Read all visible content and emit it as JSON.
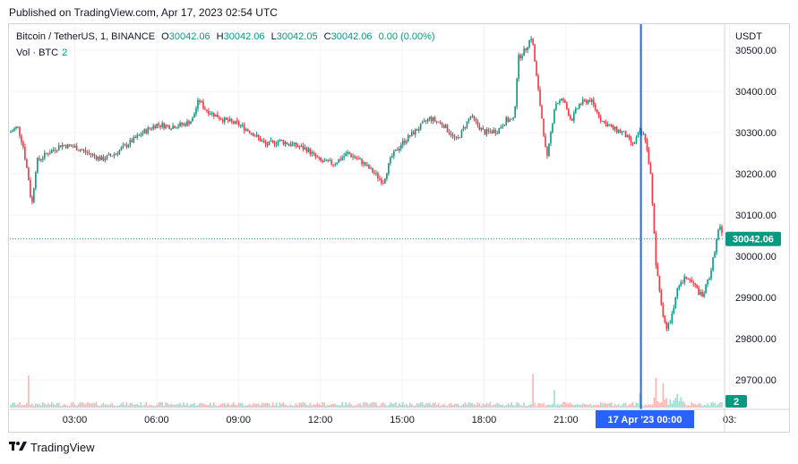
{
  "header": {
    "published": "Published on TradingView.com, Apr 17, 2023 02:54 UTC"
  },
  "legend": {
    "symbol": "Bitcoin / TetherUS, 1, BINANCE",
    "o_label": "O",
    "o_value": "30042.06",
    "h_label": "H",
    "h_value": "30042.06",
    "l_label": "L",
    "l_value": "30042.05",
    "c_label": "C",
    "c_value": "30042.06",
    "change": "0.00 (0.00%)",
    "vol_label": "Vol · BTC",
    "vol_value": "2"
  },
  "currency": "USDT",
  "colors": {
    "up": "#089981",
    "down": "#f23645",
    "cursor": "#2962ff",
    "grid": "#f0f3fa"
  },
  "footer": {
    "brand": "TradingView",
    "brand_icon": "tradingview-logo-icon"
  },
  "chart_data": {
    "type": "candlestick",
    "interval": "1 minute",
    "y_axis": {
      "ticks": [
        29700,
        29800,
        29900,
        30000,
        30100,
        30200,
        30300,
        30400,
        30500
      ],
      "tick_labels": [
        "29700.00",
        "29800.00",
        "29900.00",
        "30000.00",
        "30100.00",
        "30200.00",
        "30300.00",
        "30400.00",
        "30500.00"
      ],
      "range": [
        29633,
        30563
      ]
    },
    "x_axis": {
      "tick_labels": [
        "03:00",
        "06:00",
        "09:00",
        "12:00",
        "15:00",
        "18:00",
        "21:00",
        "00:00",
        "03:"
      ],
      "tick_hours": [
        3,
        6,
        9,
        12,
        15,
        18,
        21,
        24,
        27
      ],
      "range_hours": [
        0.62,
        26.75
      ]
    },
    "last_price": "30042.06",
    "crosshair": {
      "label": "17 Apr '23   00:00",
      "hour": 23.75
    },
    "volume_last": "2",
    "price_path": [
      [
        0.62,
        30300
      ],
      [
        0.9,
        30315
      ],
      [
        1.1,
        30270
      ],
      [
        1.3,
        30190
      ],
      [
        1.42,
        30120
      ],
      [
        1.6,
        30230
      ],
      [
        2.0,
        30250
      ],
      [
        2.5,
        30270
      ],
      [
        3.0,
        30265
      ],
      [
        3.5,
        30250
      ],
      [
        4.0,
        30235
      ],
      [
        4.5,
        30250
      ],
      [
        5.0,
        30275
      ],
      [
        5.5,
        30300
      ],
      [
        6.0,
        30320
      ],
      [
        6.5,
        30315
      ],
      [
        7.0,
        30320
      ],
      [
        7.3,
        30330
      ],
      [
        7.55,
        30380
      ],
      [
        7.8,
        30355
      ],
      [
        8.5,
        30330
      ],
      [
        9.0,
        30320
      ],
      [
        9.5,
        30300
      ],
      [
        10.0,
        30270
      ],
      [
        10.5,
        30280
      ],
      [
        11.0,
        30270
      ],
      [
        11.5,
        30260
      ],
      [
        12.0,
        30230
      ],
      [
        12.5,
        30225
      ],
      [
        13.0,
        30250
      ],
      [
        13.5,
        30230
      ],
      [
        14.0,
        30200
      ],
      [
        14.3,
        30180
      ],
      [
        14.6,
        30240
      ],
      [
        15.0,
        30275
      ],
      [
        15.5,
        30305
      ],
      [
        16.0,
        30335
      ],
      [
        16.5,
        30320
      ],
      [
        17.0,
        30280
      ],
      [
        17.5,
        30340
      ],
      [
        18.0,
        30300
      ],
      [
        18.5,
        30305
      ],
      [
        18.8,
        30330
      ],
      [
        19.1,
        30330
      ],
      [
        19.25,
        30480
      ],
      [
        19.5,
        30500
      ],
      [
        19.75,
        30535
      ],
      [
        19.95,
        30420
      ],
      [
        20.15,
        30320
      ],
      [
        20.3,
        30230
      ],
      [
        20.6,
        30370
      ],
      [
        20.9,
        30380
      ],
      [
        21.2,
        30330
      ],
      [
        21.5,
        30370
      ],
      [
        21.9,
        30380
      ],
      [
        22.3,
        30330
      ],
      [
        22.7,
        30310
      ],
      [
        23.1,
        30300
      ],
      [
        23.45,
        30270
      ],
      [
        23.7,
        30300
      ],
      [
        23.9,
        30290
      ],
      [
        24.1,
        30200
      ],
      [
        24.3,
        29980
      ],
      [
        24.5,
        29880
      ],
      [
        24.7,
        29820
      ],
      [
        24.9,
        29860
      ],
      [
        25.1,
        29920
      ],
      [
        25.4,
        29950
      ],
      [
        25.7,
        29930
      ],
      [
        26.0,
        29900
      ],
      [
        26.3,
        29960
      ],
      [
        26.5,
        30030
      ],
      [
        26.62,
        30075
      ],
      [
        26.75,
        30042.06
      ]
    ],
    "volume_profile": {
      "ylim_btc": [
        0,
        50
      ],
      "spikes": [
        [
          1.3,
          40
        ],
        [
          19.8,
          42
        ],
        [
          24.3,
          36
        ],
        [
          24.55,
          30
        ],
        [
          20.6,
          22
        ],
        [
          23.7,
          18
        ]
      ]
    }
  }
}
